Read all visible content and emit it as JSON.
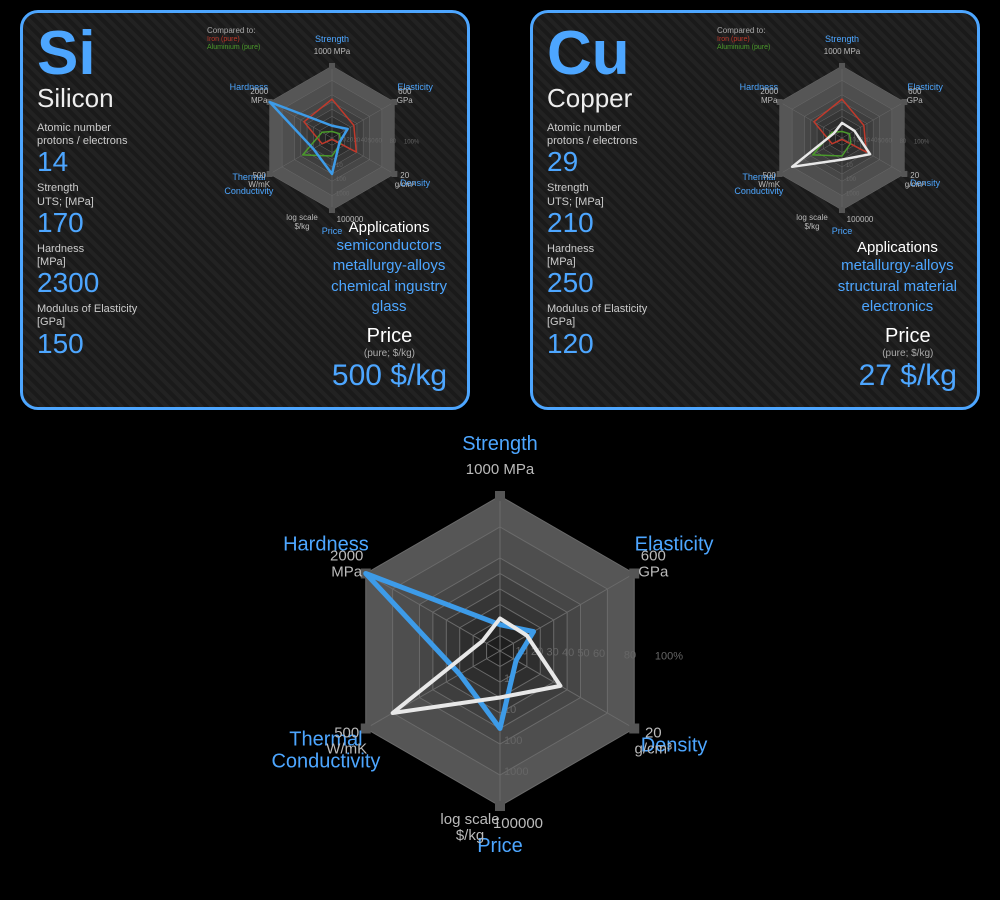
{
  "colors": {
    "accent": "#4da6ff",
    "card_border_left": "#4da6ff",
    "card_border_right": "#4da6ff",
    "grid": "#6a6a6a",
    "grid_light": "#888",
    "series_si": "#3d9be8",
    "series_cu": "#e8e8e8",
    "series_iron": "#c0392b",
    "series_alum": "#4a9a2b",
    "bg_radar": "#1a1a1a"
  },
  "radar_axes": [
    {
      "name": "Strength",
      "unit": "1000 MPa",
      "angle": 90
    },
    {
      "name": "Elasticity",
      "unit": "600 GPa",
      "angle": 30
    },
    {
      "name": "Density",
      "unit": "20 g/cm³",
      "angle": -30
    },
    {
      "name": "Price",
      "unit": "100000",
      "unitTop": "log scale $/kg",
      "angle": -90
    },
    {
      "name": "Thermal Conductivity",
      "unit": "500 W/mK",
      "angle": -150
    },
    {
      "name": "Hardness",
      "unit": "2000 MPa",
      "angle": 150
    }
  ],
  "radar_rings": [
    10,
    20,
    30,
    40,
    50,
    60,
    80,
    100
  ],
  "radar_ticks_right": [
    "10",
    "20",
    "30",
    "40",
    "50",
    "60",
    "80",
    "100%"
  ],
  "radar_ticks_bottom": [
    "1",
    "10",
    "100",
    "1000"
  ],
  "elements": [
    {
      "symbol": "Si",
      "name": "Silicon",
      "border": "#4da6ff",
      "stats": [
        {
          "label": "Atomic number\nprotons / electrons",
          "value": "14"
        },
        {
          "label": "Strength\nUTS; [MPa]",
          "value": "170"
        },
        {
          "label": "Hardness\n[MPa]",
          "value": "2300"
        },
        {
          "label": "Modulus of Elasticity\n[GPa]",
          "value": "150"
        }
      ],
      "applications": [
        "semiconductors",
        "metallurgy-alloys",
        "chemical ingustry",
        "glass"
      ],
      "price_label": "Price",
      "price_sub": "(pure; $/kg)",
      "price_value": "500 $/kg",
      "radar_values": {
        "Strength": 17,
        "Elasticity": 25,
        "Density": 12,
        "Price": 50,
        "Thermal Conductivity": 30,
        "Hardness": 100
      },
      "series_color": "#3d9be8",
      "compare_iron": {
        "Strength": 54,
        "Elasticity": 35,
        "Density": 39,
        "Price": 2,
        "Thermal Conductivity": 16,
        "Hardness": 45
      },
      "compare_alum": {
        "Strength": 9,
        "Elasticity": 12,
        "Density": 14,
        "Price": 25,
        "Thermal Conductivity": 47,
        "Hardness": 16
      }
    },
    {
      "symbol": "Cu",
      "name": "Copper",
      "border": "#4da6ff",
      "stats": [
        {
          "label": "Atomic number\nprotons / electrons",
          "value": "29"
        },
        {
          "label": "Strength\nUTS; [MPa]",
          "value": "210"
        },
        {
          "label": "Hardness\n[MPa]",
          "value": "250"
        },
        {
          "label": "Modulus of Elasticity\n[GPa]",
          "value": "120"
        }
      ],
      "applications": [
        "metallurgy-alloys",
        "structural material",
        "electronics"
      ],
      "price_label": "Price",
      "price_sub": "(pure; $/kg)",
      "price_value": "27 $/kg",
      "radar_values": {
        "Strength": 21,
        "Elasticity": 20,
        "Density": 45,
        "Price": 30,
        "Thermal Conductivity": 80,
        "Hardness": 13
      },
      "series_color": "#e8e8e8",
      "compare_iron": {
        "Strength": 54,
        "Elasticity": 35,
        "Density": 39,
        "Price": 2,
        "Thermal Conductivity": 16,
        "Hardness": 45
      },
      "compare_alum": {
        "Strength": 9,
        "Elasticity": 12,
        "Density": 14,
        "Price": 25,
        "Thermal Conductivity": 47,
        "Hardness": 16
      }
    }
  ],
  "big_chart": {
    "series": [
      {
        "name": "Silicon",
        "color": "#3d9be8",
        "width": 5,
        "values": {
          "Strength": 17,
          "Elasticity": 25,
          "Density": 12,
          "Price": 50,
          "Thermal Conductivity": 30,
          "Hardness": 100
        }
      },
      {
        "name": "Copper",
        "color": "#e8e8e8",
        "width": 4,
        "values": {
          "Strength": 21,
          "Elasticity": 20,
          "Density": 45,
          "Price": 30,
          "Thermal Conductivity": 80,
          "Hardness": 13
        }
      }
    ]
  },
  "legend_compared": {
    "title": "Compared to:",
    "items": [
      {
        "label": "Iron (pure)",
        "color": "#c0392b"
      },
      {
        "label": "Aluminium (pure)",
        "color": "#4a9a2b"
      }
    ]
  }
}
